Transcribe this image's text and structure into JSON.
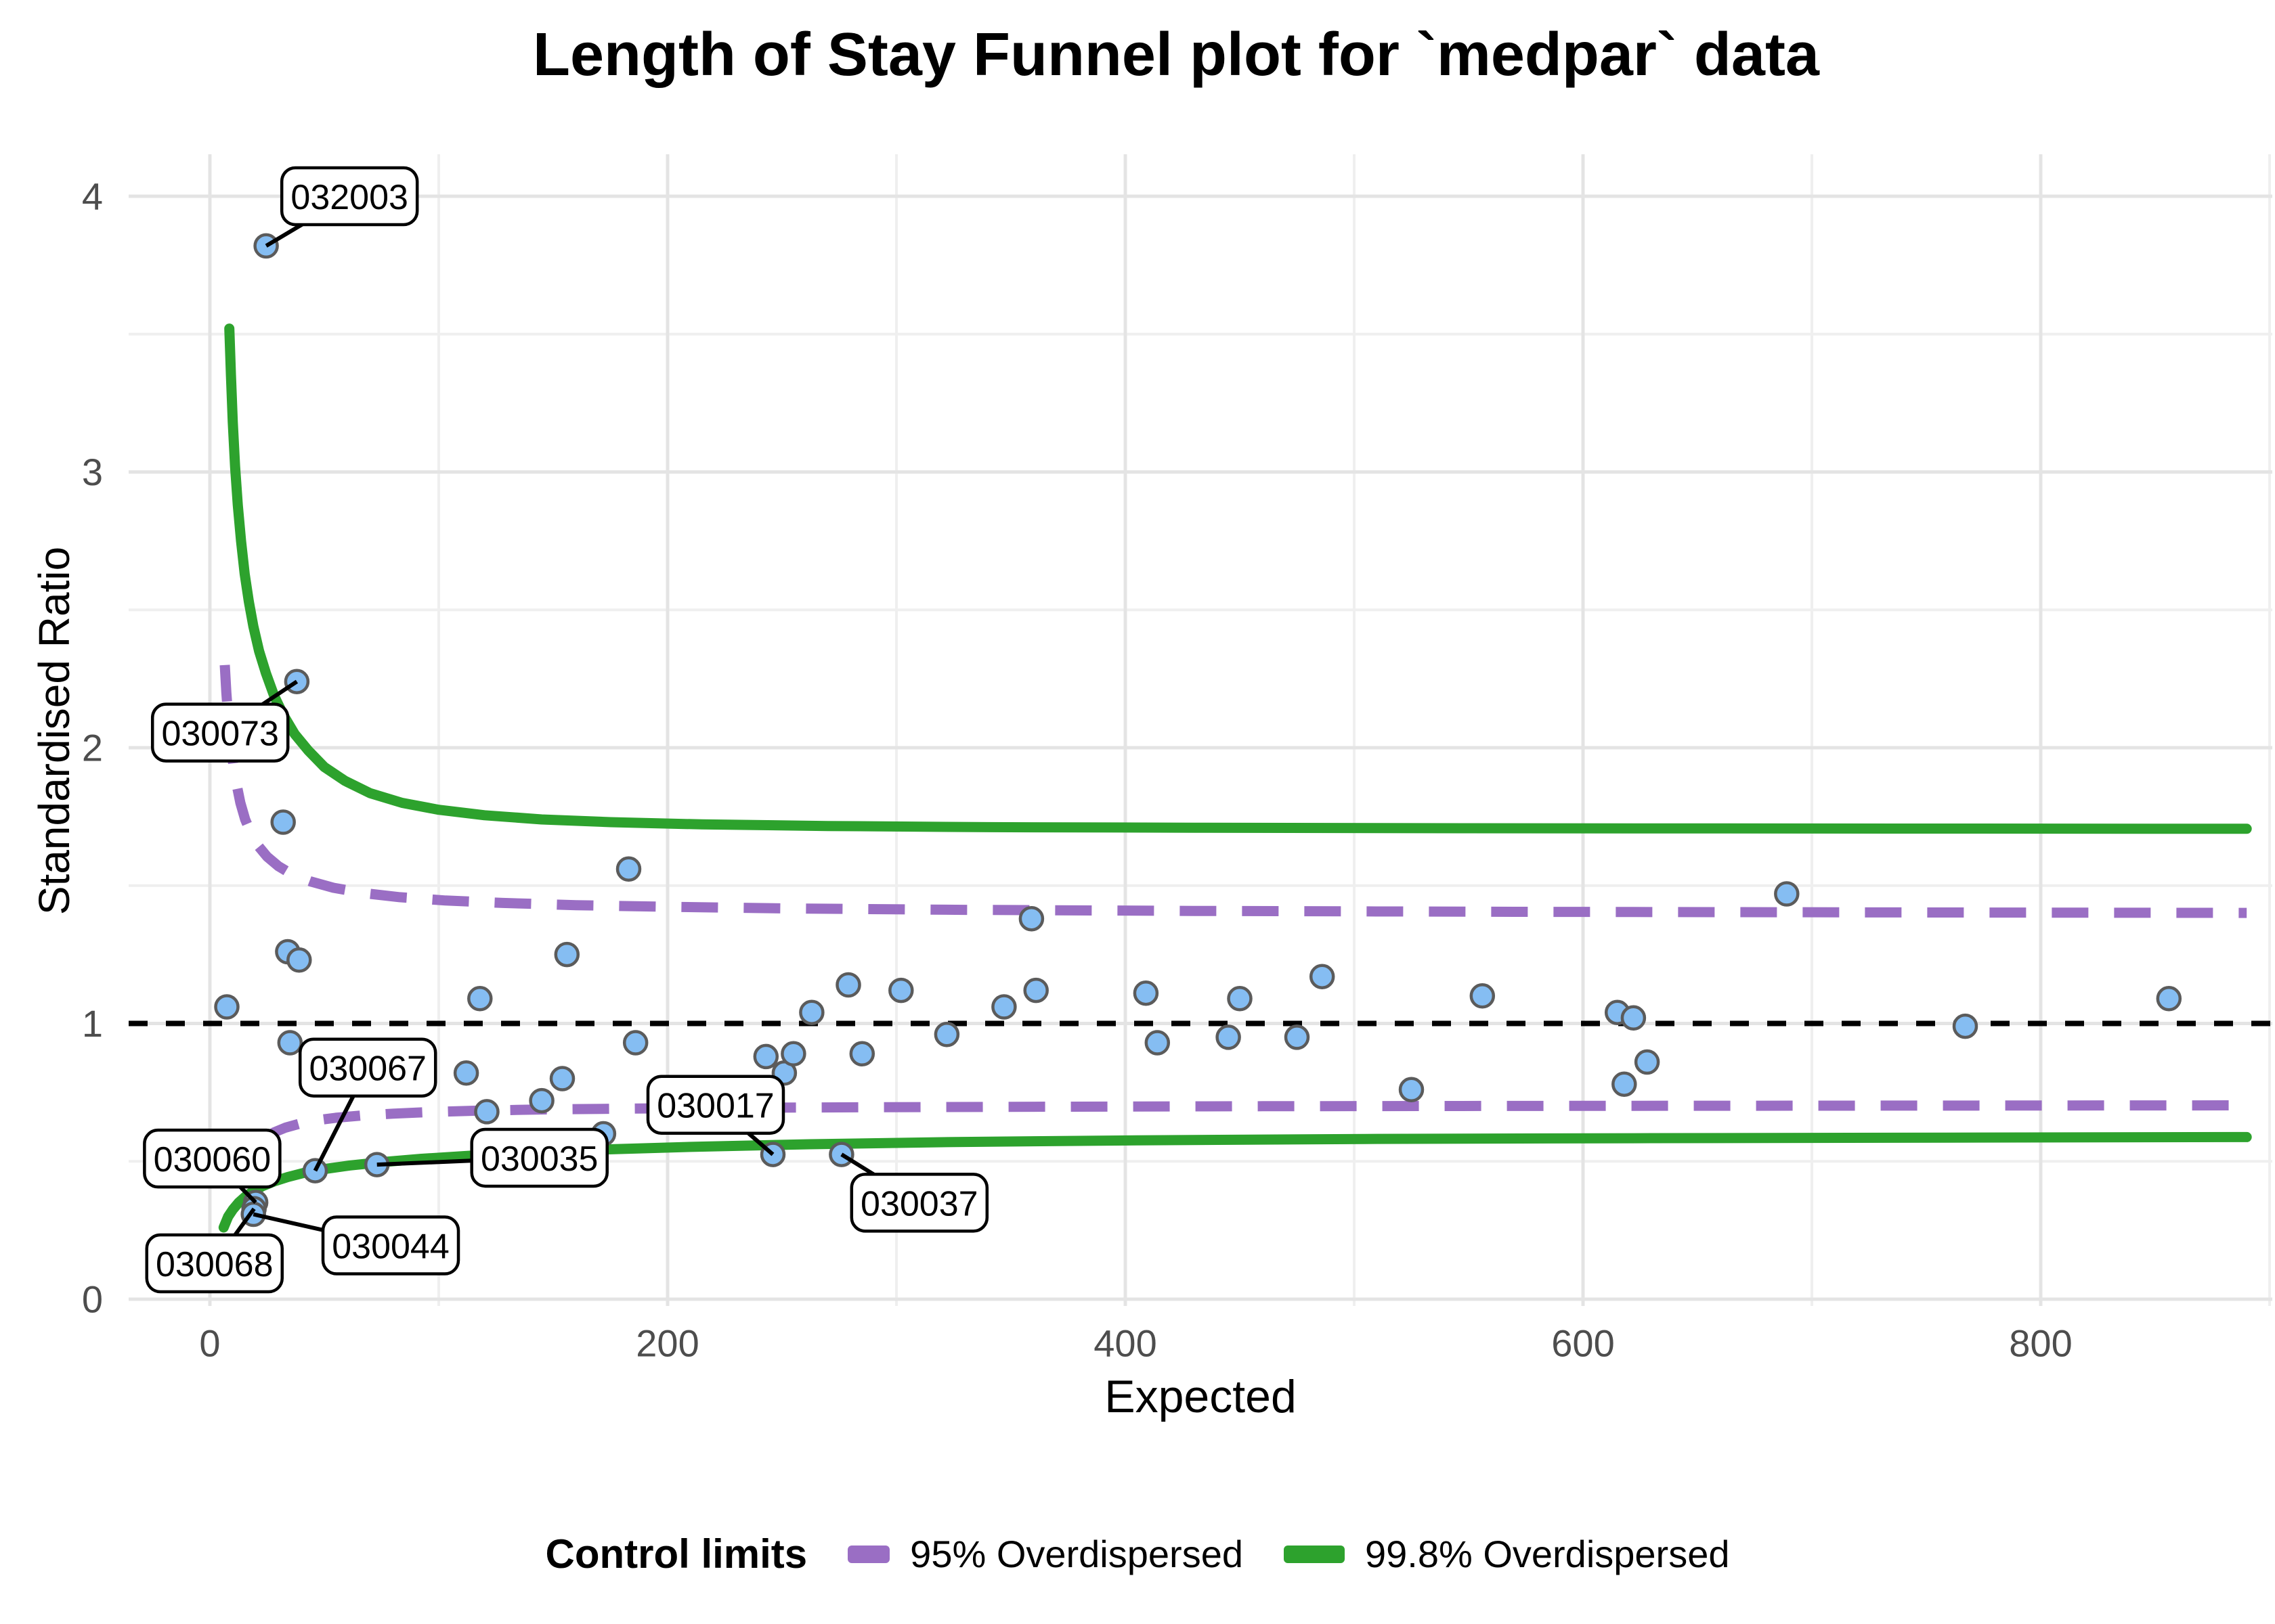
{
  "page_title": "Length of Stay Funnel plot for `medpar` data",
  "chart_data": {
    "type": "scatter",
    "title": "Length of Stay Funnel plot for `medpar` data",
    "xlabel": "Expected",
    "ylabel": "Standardised Ratio",
    "xlim": [
      -35,
      905
    ],
    "ylim": [
      0,
      4.15
    ],
    "grid": true,
    "legend_position": "bottom",
    "x_ticks": [
      0,
      200,
      400,
      600,
      800
    ],
    "x_minor_ticks": [
      100,
      300,
      500,
      700,
      900
    ],
    "y_ticks": [
      0,
      1,
      2,
      3,
      4
    ],
    "y_minor_ticks": [
      0.5,
      1.5,
      2.5,
      3.5
    ],
    "center_line_y": 1,
    "points_unlabeled": [
      [
        7.4,
        1.06
      ],
      [
        32,
        1.73
      ],
      [
        34,
        1.26
      ],
      [
        39,
        1.23
      ],
      [
        35,
        0.93
      ],
      [
        112,
        0.82
      ],
      [
        118,
        1.09
      ],
      [
        121,
        0.68
      ],
      [
        145,
        0.72
      ],
      [
        154,
        0.8
      ],
      [
        156,
        1.25
      ],
      [
        172,
        0.6
      ],
      [
        183,
        1.56
      ],
      [
        186,
        0.93
      ],
      [
        243,
        0.88
      ],
      [
        251,
        0.82
      ],
      [
        255,
        0.89
      ],
      [
        263,
        1.04
      ],
      [
        279,
        1.14
      ],
      [
        285,
        0.89
      ],
      [
        302,
        1.12
      ],
      [
        322,
        0.96
      ],
      [
        347,
        1.06
      ],
      [
        359,
        1.38
      ],
      [
        361,
        1.12
      ],
      [
        409,
        1.11
      ],
      [
        414,
        0.93
      ],
      [
        445,
        0.95
      ],
      [
        450,
        1.09
      ],
      [
        475,
        0.95
      ],
      [
        486,
        1.17
      ],
      [
        525,
        0.76
      ],
      [
        556,
        1.1
      ],
      [
        615,
        1.04
      ],
      [
        622,
        1.02
      ],
      [
        618,
        0.78
      ],
      [
        628,
        0.86
      ],
      [
        689,
        1.47
      ],
      [
        767,
        0.99
      ],
      [
        856,
        1.09
      ]
    ],
    "points_labeled": [
      {
        "label": "032003",
        "x": 24.6,
        "y": 3.82,
        "box_x": 61,
        "box_y": 4.0
      },
      {
        "label": "030073",
        "x": 38,
        "y": 2.24,
        "box_x": 4.5,
        "box_y": 2.055
      },
      {
        "label": "030067",
        "x": 46,
        "y": 0.466,
        "box_x": 69,
        "box_y": 0.84
      },
      {
        "label": "030060",
        "x": 20,
        "y": 0.351,
        "box_x": 1,
        "box_y": 0.51
      },
      {
        "label": "030068",
        "x": 19.3,
        "y": 0.328,
        "box_x": 2,
        "box_y": 0.13
      },
      {
        "label": "030044",
        "x": 19,
        "y": 0.308,
        "box_x": 79,
        "box_y": 0.195
      },
      {
        "label": "030035",
        "x": 73,
        "y": 0.488,
        "box_x": 144,
        "box_y": 0.513
      },
      {
        "label": "030017",
        "x": 246,
        "y": 0.525,
        "box_x": 221,
        "box_y": 0.705
      },
      {
        "label": "030037",
        "x": 276,
        "y": 0.525,
        "box_x": 310,
        "box_y": 0.35
      }
    ],
    "limits": {
      "overdispersed_95": {
        "upper": [
          [
            6.5,
            2.3
          ],
          [
            7.2,
            2.2
          ],
          [
            8,
            2.11
          ],
          [
            9,
            2.02
          ],
          [
            10.2,
            1.94
          ],
          [
            11.6,
            1.87
          ],
          [
            13.3,
            1.8
          ],
          [
            15.4,
            1.74
          ],
          [
            18,
            1.69
          ],
          [
            21,
            1.645
          ],
          [
            25,
            1.605
          ],
          [
            30,
            1.57
          ],
          [
            36,
            1.54
          ],
          [
            44,
            1.515
          ],
          [
            54,
            1.492
          ],
          [
            67,
            1.473
          ],
          [
            83,
            1.458
          ],
          [
            103,
            1.446
          ],
          [
            128,
            1.437
          ],
          [
            160,
            1.429
          ],
          [
            200,
            1.423
          ],
          [
            255,
            1.417
          ],
          [
            330,
            1.412
          ],
          [
            430,
            1.408
          ],
          [
            570,
            1.405
          ],
          [
            720,
            1.403
          ],
          [
            890,
            1.401
          ]
        ],
        "lower": [
          [
            24,
            0.585
          ],
          [
            28,
            0.605
          ],
          [
            33,
            0.622
          ],
          [
            39,
            0.636
          ],
          [
            46,
            0.648
          ],
          [
            55,
            0.658
          ],
          [
            66,
            0.666
          ],
          [
            80,
            0.673
          ],
          [
            97,
            0.679
          ],
          [
            118,
            0.684
          ],
          [
            145,
            0.688
          ],
          [
            180,
            0.691
          ],
          [
            225,
            0.694
          ],
          [
            285,
            0.696
          ],
          [
            360,
            0.698
          ],
          [
            460,
            0.7
          ],
          [
            590,
            0.701
          ],
          [
            740,
            0.702
          ],
          [
            890,
            0.703
          ]
        ]
      },
      "overdispersed_998": {
        "upper": [
          [
            8.5,
            3.52
          ],
          [
            9.2,
            3.35
          ],
          [
            10,
            3.18
          ],
          [
            11,
            3.02
          ],
          [
            12.2,
            2.88
          ],
          [
            13.6,
            2.75
          ],
          [
            15.2,
            2.63
          ],
          [
            17,
            2.53
          ],
          [
            19,
            2.44
          ],
          [
            21.5,
            2.35
          ],
          [
            24.5,
            2.27
          ],
          [
            28,
            2.19
          ],
          [
            32,
            2.12
          ],
          [
            37,
            2.05
          ],
          [
            43,
            1.99
          ],
          [
            50,
            1.93
          ],
          [
            59,
            1.88
          ],
          [
            70,
            1.835
          ],
          [
            84,
            1.8
          ],
          [
            100,
            1.775
          ],
          [
            120,
            1.755
          ],
          [
            145,
            1.74
          ],
          [
            175,
            1.73
          ],
          [
            215,
            1.722
          ],
          [
            270,
            1.716
          ],
          [
            340,
            1.712
          ],
          [
            430,
            1.71
          ],
          [
            550,
            1.708
          ],
          [
            700,
            1.707
          ],
          [
            890,
            1.706
          ]
        ],
        "lower": [
          [
            6,
            0.26
          ],
          [
            8,
            0.3
          ],
          [
            10,
            0.325
          ],
          [
            12.5,
            0.35
          ],
          [
            15.5,
            0.372
          ],
          [
            19,
            0.392
          ],
          [
            23,
            0.41
          ],
          [
            28,
            0.427
          ],
          [
            34,
            0.443
          ],
          [
            41,
            0.458
          ],
          [
            50,
            0.472
          ],
          [
            61,
            0.485
          ],
          [
            75,
            0.497
          ],
          [
            92,
            0.509
          ],
          [
            113,
            0.52
          ],
          [
            140,
            0.532
          ],
          [
            172,
            0.543
          ],
          [
            212,
            0.553
          ],
          [
            262,
            0.562
          ],
          [
            325,
            0.57
          ],
          [
            405,
            0.576
          ],
          [
            505,
            0.581
          ],
          [
            630,
            0.584
          ],
          [
            760,
            0.586
          ],
          [
            890,
            0.588
          ]
        ]
      }
    },
    "legend": {
      "title": "Control limits",
      "items": [
        {
          "label": "95% Overdispersed",
          "style": "dashed",
          "color": "#9A6EC4"
        },
        {
          "label": "99.8% Overdispersed",
          "style": "solid",
          "color": "#2DA22D"
        }
      ]
    },
    "colors": {
      "point_fill": "#85BDF2",
      "point_stroke": "#5B5B5B",
      "limit_95": "#9A6EC4",
      "limit_998": "#2DA22D",
      "center_line": "#000000",
      "grid_major": "#E4E4E4",
      "grid_minor": "#EFEFEF",
      "tick_text": "#4D4D4D",
      "label_box_fill": "#FFFFFF",
      "label_box_stroke": "#000000"
    }
  }
}
